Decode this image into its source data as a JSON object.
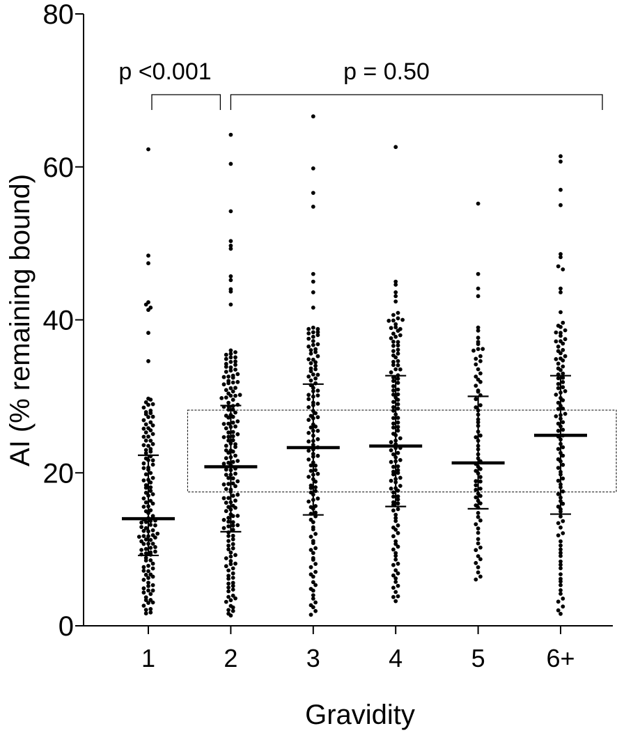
{
  "chart_data": {
    "type": "scatter",
    "subtype": "dot-plot-with-median-iqr",
    "xlabel": "Gravidity",
    "ylabel": "AI (% remaining bound)",
    "ylim": [
      0,
      80
    ],
    "yticks": [
      0,
      20,
      40,
      60,
      80
    ],
    "categories": [
      "1",
      "2",
      "3",
      "4",
      "5",
      "6+"
    ],
    "groups": [
      {
        "category": "1",
        "median": 14.0,
        "q1": 9.2,
        "q3": 22.3,
        "n": 130
      },
      {
        "category": "2",
        "median": 20.8,
        "q1": 12.3,
        "q3": 28.8,
        "n": 160
      },
      {
        "category": "3",
        "median": 23.3,
        "q1": 14.5,
        "q3": 31.6,
        "n": 120
      },
      {
        "category": "4",
        "median": 23.5,
        "q1": 15.6,
        "q3": 32.7,
        "n": 120
      },
      {
        "category": "5",
        "median": 21.3,
        "q1": 15.3,
        "q3": 30.0,
        "n": 70
      },
      {
        "category": "6+",
        "median": 24.9,
        "q1": 14.6,
        "q3": 32.7,
        "n": 100
      }
    ],
    "outliers_high": {
      "1": [
        62.3,
        48.4,
        47.4,
        42.3,
        42.0,
        41.6,
        41.3,
        38.3,
        34.6
      ],
      "2": [
        64.2,
        60.4,
        54.2,
        50.3,
        49.7,
        49.3,
        45.7,
        45.2,
        44.0,
        43.7,
        42.0
      ],
      "3": [
        66.6,
        59.8,
        56.6,
        54.8,
        46.0,
        45.0,
        43.6,
        41.6,
        38.8,
        38.4
      ],
      "4": [
        62.6,
        45.0,
        44.6,
        43.6,
        43.1,
        42.4,
        40.0,
        38.8
      ],
      "5": [
        55.2,
        46.0,
        44.1,
        43.1,
        39.0,
        38.6,
        36.2
      ],
      "6+": [
        61.4,
        60.7,
        57.0,
        55.0,
        48.6,
        48.2,
        47.0,
        46.6,
        44.1,
        43.6,
        41.0
      ]
    },
    "annotations": [
      {
        "text": "p <0.001",
        "bracket_from": "1",
        "bracket_to": "2"
      },
      {
        "text": "p = 0.50",
        "bracket_from": "2",
        "bracket_to": "6+"
      }
    ],
    "reference_box": {
      "y_min": 17.5,
      "y_max": 28.2,
      "style": "dashed",
      "span_from": "2",
      "span_to": "6+"
    },
    "grid": false,
    "legend": "none"
  }
}
